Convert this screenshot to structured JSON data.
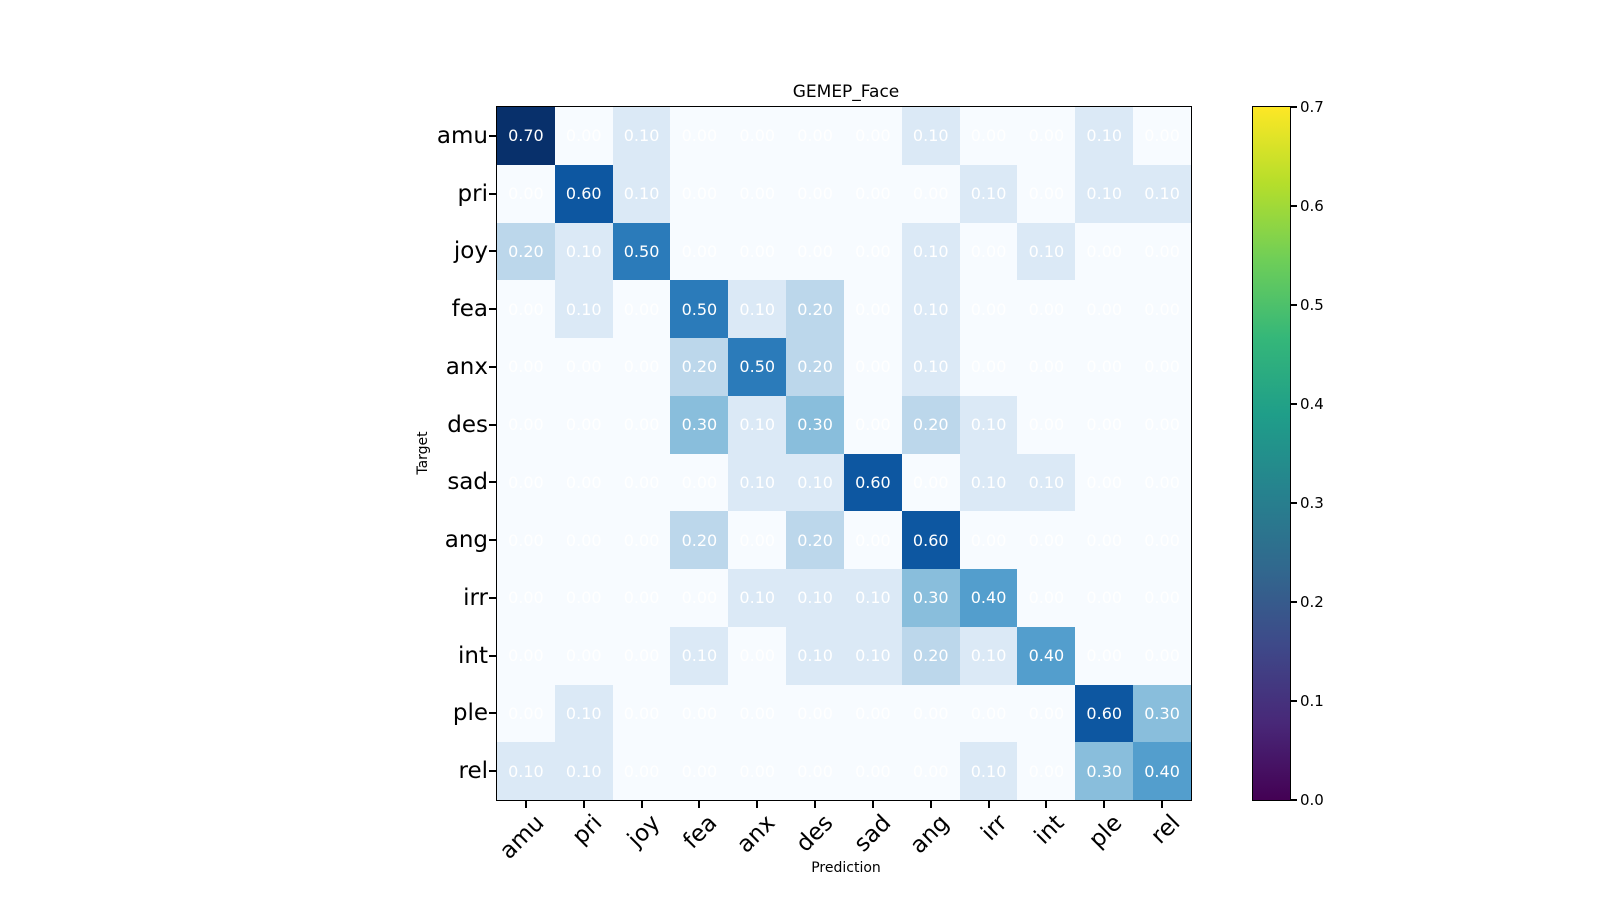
{
  "chart_data": {
    "type": "heatmap",
    "title": "GEMEP_Face",
    "xlabel": "Prediction",
    "ylabel": "Target",
    "x_categories": [
      "amu",
      "pri",
      "joy",
      "fea",
      "anx",
      "des",
      "sad",
      "ang",
      "irr",
      "int",
      "ple",
      "rel"
    ],
    "y_categories": [
      "amu",
      "pri",
      "joy",
      "fea",
      "anx",
      "des",
      "sad",
      "ang",
      "irr",
      "int",
      "ple",
      "rel"
    ],
    "matrix": [
      [
        0.7,
        0.0,
        0.1,
        0.0,
        0.0,
        0.0,
        0.0,
        0.1,
        0.0,
        0.0,
        0.1,
        0.0
      ],
      [
        0.0,
        0.6,
        0.1,
        0.0,
        0.0,
        0.0,
        0.0,
        0.0,
        0.1,
        0.0,
        0.1,
        0.1
      ],
      [
        0.2,
        0.1,
        0.5,
        0.0,
        0.0,
        0.0,
        0.0,
        0.1,
        0.0,
        0.1,
        0.0,
        0.0
      ],
      [
        0.0,
        0.1,
        0.0,
        0.5,
        0.1,
        0.2,
        0.0,
        0.1,
        0.0,
        0.0,
        0.0,
        0.0
      ],
      [
        0.0,
        0.0,
        0.0,
        0.2,
        0.5,
        0.2,
        0.0,
        0.1,
        0.0,
        0.0,
        0.0,
        0.0
      ],
      [
        0.0,
        0.0,
        0.0,
        0.3,
        0.1,
        0.3,
        0.0,
        0.2,
        0.1,
        0.0,
        0.0,
        0.0
      ],
      [
        0.0,
        0.0,
        0.0,
        0.0,
        0.1,
        0.1,
        0.6,
        0.0,
        0.1,
        0.1,
        0.0,
        0.0
      ],
      [
        0.0,
        0.0,
        0.0,
        0.2,
        0.0,
        0.2,
        0.0,
        0.6,
        0.0,
        0.0,
        0.0,
        0.0
      ],
      [
        0.0,
        0.0,
        0.0,
        0.0,
        0.1,
        0.1,
        0.1,
        0.3,
        0.4,
        0.0,
        0.0,
        0.0
      ],
      [
        0.0,
        0.0,
        0.0,
        0.1,
        0.0,
        0.1,
        0.1,
        0.2,
        0.1,
        0.4,
        0.0,
        0.0
      ],
      [
        0.0,
        0.1,
        0.0,
        0.0,
        0.0,
        0.0,
        0.0,
        0.0,
        0.0,
        0.0,
        0.6,
        0.3
      ],
      [
        0.1,
        0.1,
        0.0,
        0.0,
        0.0,
        0.0,
        0.0,
        0.0,
        0.1,
        0.0,
        0.3,
        0.4
      ]
    ],
    "value_decimals": 2,
    "vmin": 0.0,
    "vmax": 0.7,
    "annotation_color": "#ffffff",
    "cell_colormap_name": "Blues",
    "cell_colors": {
      "0.00": "#f7fbff",
      "0.10": "#dbe9f6",
      "0.20": "#bcd7eb",
      "0.30": "#89bedc",
      "0.40": "#539ecd",
      "0.50": "#2b7bba",
      "0.60": "#0d57a1",
      "0.70": "#08306b"
    },
    "colorbar": {
      "ticks": [
        "0.0",
        "0.1",
        "0.2",
        "0.3",
        "0.4",
        "0.5",
        "0.6",
        "0.7"
      ],
      "colormap_name": "viridis",
      "gradient_bottom_to_top": [
        "#440154",
        "#482878",
        "#3e4989",
        "#31688e",
        "#26828e",
        "#1f9e89",
        "#35b779",
        "#6ece58",
        "#b5de2b",
        "#fde725"
      ]
    },
    "axis_color": "#000000",
    "background_color": "#ffffff",
    "legend": "none",
    "grid": "off"
  }
}
